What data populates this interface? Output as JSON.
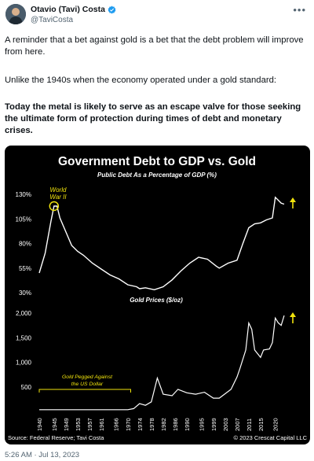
{
  "tweet": {
    "display_name": "Otavio (Tavi) Costa",
    "handle": "@TaviCosta",
    "paragraph1": "A reminder that a bet against gold is a bet that the debt problem will improve from here.",
    "paragraph2": "Unlike the 1940s when the economy operated under a gold standard:",
    "paragraph3": "Today the metal is likely to serve as an escape valve for those seeking the ultimate form of protection during times of debt and monetary crises.",
    "timestamp": "5:26 AM · Jul 13, 2023",
    "more_icon": "more-horizontal-icon",
    "verified_icon": "verified-badge-icon",
    "verified_color": "#1d9bf0"
  },
  "chart": {
    "title": "Government Debt to GDP vs. Gold",
    "subtitle": "Public Debt As a Percentage of GDP (%)",
    "annotation_ww2_line1": "World",
    "annotation_ww2_line2": "War II",
    "gold_label": "Gold Prices ($/oz)",
    "pegged_line1": "Gold Pegged Against",
    "pegged_line2": "the US Dollar",
    "source": "Source: Federal Reserve; Tavi Costa",
    "copyright": "© 2023 Crescat Capital LLC",
    "accent_color": "#f0e30c"
  },
  "chart_data": [
    {
      "type": "line",
      "title": "Government Debt to GDP vs. Gold",
      "subtitle": "Public Debt As a Percentage of GDP (%)",
      "ylabel": "",
      "yticks": [
        "130%",
        "105%",
        "80%",
        "55%",
        "30%"
      ],
      "ylim": [
        30,
        130
      ],
      "x": [
        1940,
        1942,
        1944,
        1945,
        1946,
        1947,
        1949,
        1951,
        1953,
        1955,
        1958,
        1961,
        1964,
        1967,
        1970,
        1973,
        1974,
        1976,
        1979,
        1982,
        1985,
        1988,
        1991,
        1994,
        1997,
        2000,
        2001,
        2004,
        2007,
        2009,
        2011,
        2013,
        2015,
        2017,
        2019,
        2020,
        2021,
        2022,
        2023
      ],
      "series": [
        {
          "values": [
            50,
            70,
            103,
            118,
            118,
            106,
            92,
            78,
            72,
            68,
            60,
            54,
            48,
            44,
            38,
            36,
            34,
            35,
            33,
            36,
            43,
            52,
            60,
            66,
            64,
            57,
            55,
            60,
            63,
            80,
            96,
            100,
            101,
            104,
            106,
            127,
            124,
            121,
            120
          ]
        }
      ]
    },
    {
      "type": "line",
      "title": "Gold Prices ($/oz)",
      "yticks": [
        "2,000",
        "1,500",
        "1,000",
        "500"
      ],
      "ylim": [
        0,
        2000
      ],
      "xticks": [
        "1940",
        "1945",
        "1949",
        "1953",
        "1957",
        "1961",
        "1966",
        "1970",
        "1974",
        "1978",
        "1982",
        "1986",
        "1990",
        "1995",
        "1999",
        "2003",
        "2007",
        "2011",
        "2015",
        "2020"
      ],
      "x": [
        1940,
        1950,
        1960,
        1970,
        1972,
        1974,
        1976,
        1978,
        1980,
        1982,
        1985,
        1987,
        1990,
        1993,
        1996,
        1999,
        2001,
        2003,
        2005,
        2007,
        2008,
        2010,
        2011,
        2012,
        2013,
        2015,
        2016,
        2018,
        2019,
        2020,
        2021,
        2022,
        2023
      ],
      "series": [
        {
          "values": [
            35,
            35,
            35,
            36,
            58,
            160,
            125,
            195,
            680,
            350,
            320,
            450,
            380,
            350,
            390,
            270,
            270,
            360,
            450,
            700,
            870,
            1250,
            1800,
            1670,
            1250,
            1100,
            1250,
            1270,
            1400,
            1900,
            1800,
            1750,
            1950
          ]
        }
      ]
    }
  ]
}
